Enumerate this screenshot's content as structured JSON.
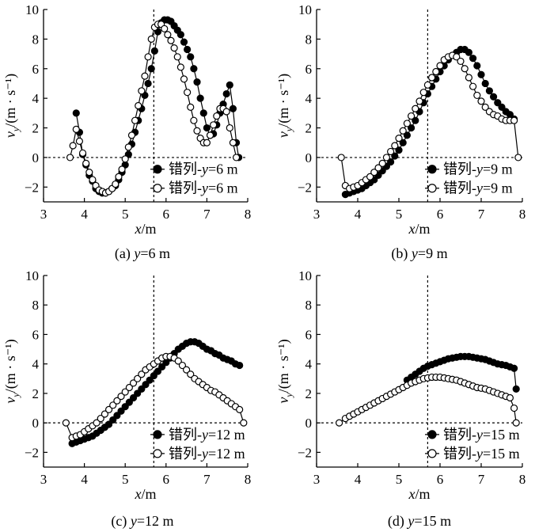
{
  "chart_data": [
    {
      "type": "line",
      "caption": "(a) y=6 m",
      "xlabel": "x/m",
      "ylabel": "v_y/(m · s⁻¹)",
      "xlim": [
        3,
        8
      ],
      "ylim": [
        -3,
        10
      ],
      "xticks": [
        3,
        4,
        5,
        6,
        7,
        8
      ],
      "yticks": [
        -2,
        0,
        2,
        4,
        6,
        8,
        10
      ],
      "vline_x": 5.7,
      "legend_position": "lower-right",
      "series": [
        {
          "name": "错列-y=6 m",
          "marker": "filled",
          "x": [
            3.8,
            3.88,
            3.96,
            4.04,
            4.12,
            4.2,
            4.28,
            4.36,
            4.44,
            4.52,
            4.6,
            4.68,
            4.76,
            4.84,
            4.92,
            5.0,
            5.08,
            5.16,
            5.24,
            5.32,
            5.4,
            5.48,
            5.56,
            5.64,
            5.72,
            5.8,
            5.88,
            5.96,
            6.04,
            6.12,
            6.2,
            6.28,
            6.36,
            6.44,
            6.52,
            6.6,
            6.68,
            6.76,
            6.84,
            6.92,
            7.0,
            7.08,
            7.16,
            7.24,
            7.32,
            7.4,
            7.48,
            7.56,
            7.64,
            7.72,
            7.78
          ],
          "y": [
            3.0,
            1.7,
            0.2,
            -0.5,
            -1.2,
            -1.6,
            -2.1,
            -2.3,
            -2.4,
            -2.4,
            -2.3,
            -2.1,
            -1.9,
            -1.5,
            -1.0,
            -0.5,
            0.2,
            0.9,
            1.7,
            2.5,
            3.3,
            4.2,
            5.0,
            6.0,
            7.2,
            8.5,
            9.1,
            9.3,
            9.3,
            9.2,
            8.9,
            8.6,
            8.3,
            7.8,
            7.3,
            6.8,
            6.0,
            5.1,
            4.0,
            3.0,
            2.0,
            1.5,
            1.6,
            2.2,
            3.0,
            3.6,
            4.3,
            4.9,
            3.3,
            1.0,
            0.0
          ]
        },
        {
          "name": "错列-y=6 m",
          "marker": "hollow",
          "x": [
            3.65,
            3.72,
            3.8,
            3.88,
            3.96,
            4.04,
            4.12,
            4.2,
            4.28,
            4.36,
            4.44,
            4.52,
            4.6,
            4.68,
            4.76,
            4.84,
            4.92,
            5.0,
            5.08,
            5.16,
            5.24,
            5.32,
            5.4,
            5.48,
            5.56,
            5.64,
            5.72,
            5.8,
            5.88,
            5.96,
            6.04,
            6.12,
            6.2,
            6.28,
            6.36,
            6.44,
            6.52,
            6.6,
            6.68,
            6.76,
            6.84,
            6.92,
            7.0,
            7.08,
            7.16,
            7.24,
            7.32,
            7.4,
            7.48,
            7.56,
            7.64,
            7.72
          ],
          "y": [
            0.0,
            0.8,
            1.9,
            1.1,
            0.3,
            -0.4,
            -1.0,
            -1.5,
            -1.9,
            -2.2,
            -2.3,
            -2.4,
            -2.3,
            -2.1,
            -1.8,
            -1.3,
            -0.8,
            -0.1,
            0.7,
            1.5,
            2.5,
            3.5,
            4.5,
            5.5,
            6.8,
            8.0,
            8.8,
            9.0,
            9.0,
            8.7,
            8.3,
            7.9,
            7.4,
            6.8,
            6.1,
            5.3,
            4.4,
            3.4,
            2.5,
            1.8,
            1.3,
            1.0,
            1.0,
            1.5,
            2.2,
            2.8,
            3.3,
            3.3,
            3.1,
            2.0,
            1.0,
            0.0
          ]
        }
      ]
    },
    {
      "type": "line",
      "caption": "(b) y=9 m",
      "xlabel": "x/m",
      "ylabel": "v_y/(m · s⁻¹)",
      "xlim": [
        3,
        8
      ],
      "ylim": [
        -3,
        10
      ],
      "xticks": [
        3,
        4,
        5,
        6,
        7,
        8
      ],
      "yticks": [
        -2,
        0,
        2,
        4,
        6,
        8,
        10
      ],
      "vline_x": 5.7,
      "legend_position": "lower-right",
      "series": [
        {
          "name": "错列-y=9 m",
          "marker": "filled",
          "x": [
            3.7,
            3.8,
            3.9,
            4.0,
            4.1,
            4.2,
            4.3,
            4.4,
            4.5,
            4.6,
            4.7,
            4.8,
            4.9,
            5.0,
            5.1,
            5.2,
            5.3,
            5.4,
            5.5,
            5.6,
            5.7,
            5.8,
            5.9,
            6.0,
            6.1,
            6.2,
            6.3,
            6.4,
            6.5,
            6.6,
            6.7,
            6.8,
            6.9,
            7.0,
            7.1,
            7.2,
            7.3,
            7.4,
            7.5,
            7.6,
            7.7,
            7.8
          ],
          "y": [
            -2.5,
            -2.4,
            -2.3,
            -2.2,
            -2.1,
            -1.9,
            -1.7,
            -1.5,
            -1.2,
            -0.9,
            -0.6,
            -0.3,
            0.1,
            0.5,
            1.0,
            1.5,
            2.0,
            2.5,
            3.1,
            3.7,
            4.3,
            4.8,
            5.3,
            5.8,
            6.2,
            6.6,
            6.9,
            7.1,
            7.3,
            7.3,
            7.1,
            6.7,
            6.2,
            5.6,
            5.0,
            4.5,
            4.1,
            3.7,
            3.4,
            3.1,
            2.9,
            2.6
          ]
        },
        {
          "name": "错列-y=9 m",
          "marker": "hollow",
          "x": [
            3.6,
            3.7,
            3.8,
            3.9,
            4.0,
            4.1,
            4.2,
            4.3,
            4.4,
            4.5,
            4.6,
            4.7,
            4.8,
            4.9,
            5.0,
            5.1,
            5.2,
            5.3,
            5.4,
            5.5,
            5.6,
            5.7,
            5.8,
            5.9,
            6.0,
            6.1,
            6.2,
            6.3,
            6.4,
            6.5,
            6.6,
            6.7,
            6.8,
            6.9,
            7.0,
            7.1,
            7.2,
            7.3,
            7.4,
            7.5,
            7.6,
            7.7,
            7.8,
            7.9
          ],
          "y": [
            0.0,
            -1.9,
            -2.1,
            -2.0,
            -1.9,
            -1.7,
            -1.5,
            -1.3,
            -1.0,
            -0.7,
            -0.4,
            0.0,
            0.4,
            0.8,
            1.3,
            1.8,
            2.3,
            2.8,
            3.3,
            3.8,
            4.4,
            4.9,
            5.4,
            5.8,
            6.2,
            6.6,
            6.8,
            6.9,
            6.8,
            6.5,
            6.0,
            5.4,
            4.8,
            4.2,
            3.8,
            3.4,
            3.1,
            2.9,
            2.8,
            2.6,
            2.5,
            2.5,
            2.5,
            0.0
          ]
        }
      ]
    },
    {
      "type": "line",
      "caption": "(c) y=12 m",
      "xlabel": "x/m",
      "ylabel": "v_y/(m · s⁻¹)",
      "xlim": [
        3,
        8
      ],
      "ylim": [
        -3,
        10
      ],
      "xticks": [
        3,
        4,
        5,
        6,
        7,
        8
      ],
      "yticks": [
        -2,
        0,
        2,
        4,
        6,
        8,
        10
      ],
      "vline_x": 5.7,
      "legend_position": "lower-right",
      "series": [
        {
          "name": "错列-y=12 m",
          "marker": "filled",
          "x": [
            3.7,
            3.8,
            3.9,
            4.0,
            4.1,
            4.2,
            4.3,
            4.4,
            4.5,
            4.6,
            4.7,
            4.8,
            4.9,
            5.0,
            5.1,
            5.2,
            5.3,
            5.4,
            5.5,
            5.6,
            5.7,
            5.8,
            5.9,
            6.0,
            6.1,
            6.2,
            6.3,
            6.4,
            6.5,
            6.6,
            6.7,
            6.8,
            6.9,
            7.0,
            7.1,
            7.2,
            7.3,
            7.4,
            7.5,
            7.6,
            7.7,
            7.8
          ],
          "y": [
            -1.4,
            -1.3,
            -1.2,
            -1.1,
            -1.0,
            -0.9,
            -0.7,
            -0.5,
            -0.3,
            -0.1,
            0.2,
            0.5,
            0.8,
            1.1,
            1.4,
            1.7,
            2.0,
            2.3,
            2.6,
            2.9,
            3.2,
            3.5,
            3.8,
            4.1,
            4.4,
            4.7,
            5.0,
            5.2,
            5.4,
            5.5,
            5.5,
            5.4,
            5.2,
            5.0,
            4.9,
            4.7,
            4.6,
            4.4,
            4.3,
            4.2,
            4.0,
            3.9
          ]
        },
        {
          "name": "错列-y=12 m",
          "marker": "hollow",
          "x": [
            3.55,
            3.7,
            3.8,
            3.9,
            4.0,
            4.1,
            4.2,
            4.3,
            4.4,
            4.5,
            4.6,
            4.7,
            4.8,
            4.9,
            5.0,
            5.1,
            5.2,
            5.3,
            5.4,
            5.5,
            5.6,
            5.7,
            5.8,
            5.9,
            6.0,
            6.1,
            6.2,
            6.3,
            6.4,
            6.5,
            6.6,
            6.7,
            6.8,
            6.9,
            7.0,
            7.1,
            7.2,
            7.3,
            7.4,
            7.5,
            7.6,
            7.7,
            7.8,
            7.9
          ],
          "y": [
            0.0,
            -1.0,
            -0.9,
            -0.8,
            -0.6,
            -0.4,
            -0.2,
            0.0,
            0.3,
            0.6,
            0.9,
            1.2,
            1.5,
            1.8,
            2.1,
            2.4,
            2.7,
            3.0,
            3.3,
            3.6,
            3.8,
            4.0,
            4.2,
            4.4,
            4.5,
            4.5,
            4.4,
            4.2,
            3.9,
            3.6,
            3.3,
            3.0,
            2.8,
            2.6,
            2.4,
            2.2,
            2.1,
            1.9,
            1.7,
            1.5,
            1.3,
            1.1,
            0.9,
            0.0
          ]
        }
      ]
    },
    {
      "type": "line",
      "caption": "(d) y=15 m",
      "xlabel": "x/m",
      "ylabel": "v_y/(m · s⁻¹)",
      "xlim": [
        3,
        8
      ],
      "ylim": [
        -3,
        10
      ],
      "xticks": [
        3,
        4,
        5,
        6,
        7,
        8
      ],
      "yticks": [
        -2,
        0,
        2,
        4,
        6,
        8,
        10
      ],
      "vline_x": 5.7,
      "legend_position": "lower-right",
      "series": [
        {
          "name": "错列-y=15 m",
          "marker": "filled",
          "x": [
            5.2,
            5.3,
            5.4,
            5.5,
            5.6,
            5.7,
            5.8,
            5.9,
            6.0,
            6.1,
            6.2,
            6.3,
            6.4,
            6.5,
            6.6,
            6.7,
            6.8,
            6.9,
            7.0,
            7.1,
            7.2,
            7.3,
            7.4,
            7.5,
            7.6,
            7.7,
            7.8,
            7.85
          ],
          "y": [
            2.9,
            3.1,
            3.3,
            3.5,
            3.7,
            3.85,
            3.95,
            4.05,
            4.15,
            4.25,
            4.35,
            4.4,
            4.45,
            4.5,
            4.5,
            4.5,
            4.45,
            4.4,
            4.35,
            4.3,
            4.2,
            4.1,
            4.0,
            3.95,
            3.9,
            3.8,
            3.7,
            2.3
          ]
        },
        {
          "name": "错列-y=15 m",
          "marker": "hollow",
          "x": [
            3.55,
            3.7,
            3.8,
            3.9,
            4.0,
            4.1,
            4.2,
            4.3,
            4.4,
            4.5,
            4.6,
            4.7,
            4.8,
            4.9,
            5.0,
            5.1,
            5.2,
            5.3,
            5.4,
            5.5,
            5.6,
            5.7,
            5.8,
            5.9,
            6.0,
            6.1,
            6.2,
            6.3,
            6.4,
            6.5,
            6.6,
            6.7,
            6.8,
            6.9,
            7.0,
            7.1,
            7.2,
            7.3,
            7.4,
            7.5,
            7.6,
            7.7,
            7.8,
            7.85
          ],
          "y": [
            0.0,
            0.3,
            0.45,
            0.6,
            0.75,
            0.9,
            1.05,
            1.2,
            1.35,
            1.5,
            1.65,
            1.8,
            1.95,
            2.1,
            2.25,
            2.4,
            2.55,
            2.7,
            2.8,
            2.9,
            3.0,
            3.05,
            3.1,
            3.1,
            3.1,
            3.05,
            3.0,
            2.95,
            2.9,
            2.8,
            2.7,
            2.6,
            2.5,
            2.4,
            2.35,
            2.3,
            2.2,
            2.1,
            2.0,
            1.9,
            1.8,
            1.7,
            1.0,
            0.0
          ]
        }
      ]
    }
  ]
}
